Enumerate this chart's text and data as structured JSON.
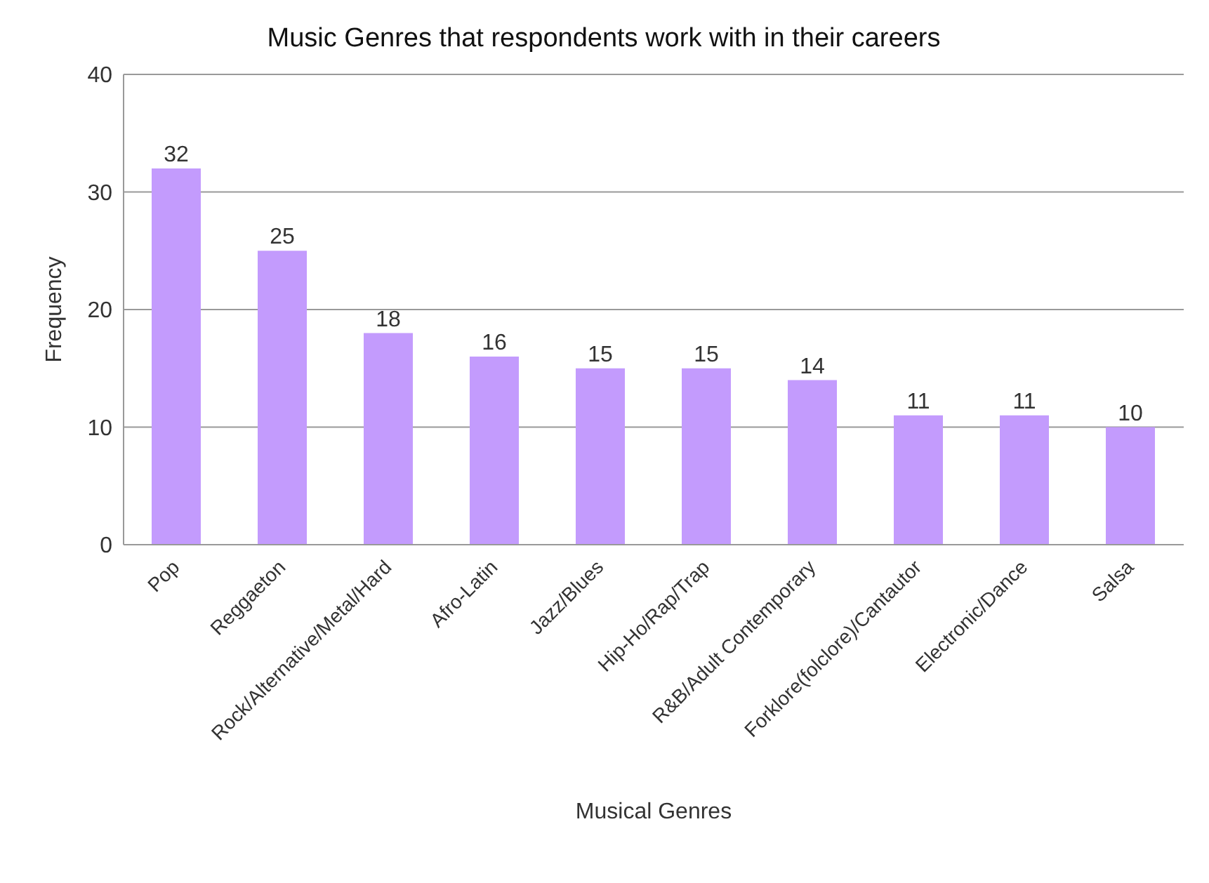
{
  "chart_data": {
    "type": "bar",
    "title": "Music Genres that respondents work with in their careers",
    "xlabel": "Musical Genres",
    "ylabel": "Frequency",
    "categories": [
      "Pop",
      "Reggaeton",
      "Rock/Alternative/Metal/Hard",
      "Afro-Latin",
      "Jazz/Blues",
      "Hip-Ho/Rap/Trap",
      "R&B/Adult Contemporary",
      "Forklore(folclore)/Cantautor",
      "Electronic/Dance",
      "Salsa"
    ],
    "values": [
      32,
      25,
      18,
      16,
      15,
      15,
      14,
      11,
      11,
      10
    ],
    "color": "#c39bfd",
    "ylim": [
      0,
      40
    ],
    "yticks": [
      0,
      10,
      20,
      30,
      40
    ],
    "grid": "y",
    "data_labels": true
  }
}
